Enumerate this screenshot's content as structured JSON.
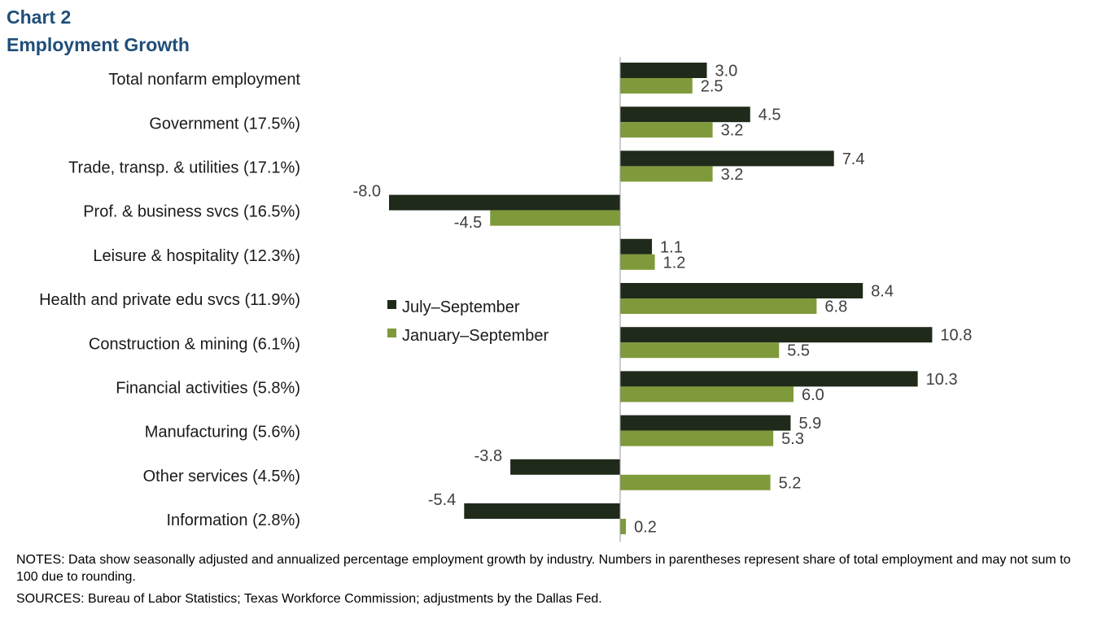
{
  "header": {
    "chart_label": "Chart 2",
    "title": "Employment  Growth"
  },
  "chart_data": {
    "type": "bar",
    "orientation": "horizontal",
    "categories": [
      "Total nonfarm employment",
      "Government (17.5%)",
      "Trade, transp. & utilities (17.1%)",
      "Prof. & business svcs (16.5%)",
      "Leisure & hospitality (12.3%)",
      "Health and private edu svcs (11.9%)",
      "Construction & mining (6.1%)",
      "Financial activities (5.8%)",
      "Manufacturing (5.6%)",
      "Other services (4.5%)",
      "Information (2.8%)"
    ],
    "series": [
      {
        "name": "July–September",
        "color": "#1f2a1a",
        "values": [
          3.0,
          4.5,
          7.4,
          -8.0,
          1.1,
          8.4,
          10.8,
          10.3,
          5.9,
          -3.8,
          -5.4
        ],
        "labels": [
          "3.0",
          "4.5",
          "7.4",
          "-8.0",
          "1.1",
          "8.4",
          "10.8",
          "10.3",
          "5.9",
          "-3.8",
          "-5.4"
        ]
      },
      {
        "name": "January–September",
        "color": "#7f9a3a",
        "values": [
          2.5,
          3.2,
          3.2,
          -4.5,
          1.2,
          6.8,
          5.5,
          6.0,
          5.3,
          5.2,
          0.2
        ],
        "labels": [
          "2.5",
          "3.2",
          "3.2",
          "-4.5",
          "1.2",
          "6.8",
          "5.5",
          "6.0",
          "5.3",
          "5.2",
          "0.2"
        ]
      }
    ],
    "xlim": [
      -8.8,
      11.5
    ],
    "legend_position": "center-left of plot",
    "grid": false
  },
  "footer": {
    "notes": "NOTES: Data show seasonally adjusted and annualized percentage employment growth by industry. Numbers in parentheses represent share of total employment and may not sum to 100 due to rounding.",
    "sources": "SOURCES: Bureau of Labor Statistics; Texas Workforce Commission; adjustments by the Dallas Fed."
  }
}
